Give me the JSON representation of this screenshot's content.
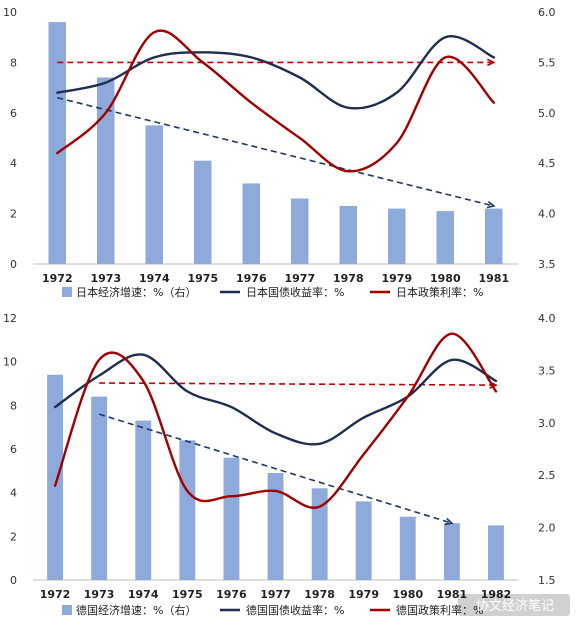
{
  "colors": {
    "bars": "#8eaadb",
    "yield": "#1f2d4f",
    "policy": "#a00000",
    "trend_dashed_red": "#c00000",
    "trend_dashed_blue": "#1f3864"
  },
  "watermark": "协文经济笔记",
  "chart_data": [
    {
      "type": "bar+line",
      "title": "",
      "categories": [
        "1972",
        "1973",
        "1974",
        "1975",
        "1976",
        "1977",
        "1978",
        "1979",
        "1980",
        "1981"
      ],
      "left_axis": {
        "ylim": [
          0,
          10
        ],
        "ticks": [
          "0",
          "2",
          "4",
          "6",
          "8",
          "10"
        ]
      },
      "right_axis": {
        "ylim": [
          3.5,
          6.0
        ],
        "ticks": [
          "3.5",
          "4.0",
          "4.5",
          "5.0",
          "5.5",
          "6.0"
        ]
      },
      "grid": false,
      "legend_position": "bottom",
      "series": [
        {
          "name": "日本经济增速：%（右）",
          "kind": "bar",
          "axis": "left",
          "values": [
            9.6,
            7.4,
            5.5,
            4.1,
            3.2,
            2.6,
            2.3,
            2.2,
            2.1,
            2.2
          ]
        },
        {
          "name": "日本国债收益率：%",
          "kind": "line",
          "axis": "right",
          "values": [
            5.2,
            5.3,
            5.55,
            5.6,
            5.55,
            5.35,
            5.05,
            5.2,
            5.75,
            5.55
          ]
        },
        {
          "name": "日本政策利率：%",
          "kind": "line",
          "axis": "right",
          "values": [
            4.6,
            5.0,
            5.8,
            5.5,
            5.1,
            4.75,
            4.42,
            4.7,
            5.55,
            5.1
          ]
        }
      ],
      "trend_lines": [
        {
          "axis": "right",
          "from": {
            "x": "1972",
            "y": 5.5
          },
          "to": {
            "x": "1981",
            "y": 5.5
          }
        },
        {
          "axis": "left",
          "from": {
            "x": "1972",
            "y": 6.6
          },
          "to": {
            "x": "1981",
            "y": 2.3
          }
        }
      ]
    },
    {
      "type": "bar+line",
      "title": "",
      "categories": [
        "1972",
        "1973",
        "1974",
        "1975",
        "1976",
        "1977",
        "1978",
        "1979",
        "1980",
        "1981",
        "1982"
      ],
      "left_axis": {
        "ylim": [
          0,
          12
        ],
        "ticks": [
          "0",
          "2",
          "4",
          "6",
          "8",
          "10",
          "12"
        ]
      },
      "right_axis": {
        "ylim": [
          1.5,
          4.0
        ],
        "ticks": [
          "1.5",
          "2.0",
          "2.5",
          "3.0",
          "3.5",
          "4.0"
        ]
      },
      "grid": false,
      "legend_position": "bottom",
      "series": [
        {
          "name": "德国经济增速：%（右）",
          "kind": "bar",
          "axis": "left",
          "values": [
            9.4,
            8.4,
            7.3,
            6.4,
            5.6,
            4.9,
            4.2,
            3.6,
            2.9,
            2.6,
            2.5
          ]
        },
        {
          "name": "德国国债收益率：%",
          "kind": "line",
          "axis": "right",
          "values": [
            3.15,
            3.45,
            3.65,
            3.3,
            3.15,
            2.9,
            2.8,
            3.05,
            3.25,
            3.6,
            3.4
          ]
        },
        {
          "name": "德国政策利率：%",
          "kind": "line",
          "axis": "right",
          "values": [
            2.4,
            3.6,
            3.4,
            2.35,
            2.3,
            2.35,
            2.2,
            2.7,
            3.25,
            3.85,
            3.3
          ]
        }
      ],
      "trend_lines": [
        {
          "axis": "right",
          "from": {
            "x": "1973",
            "y": 3.38
          },
          "to": {
            "x": "1982",
            "y": 3.36
          }
        },
        {
          "axis": "left",
          "from": {
            "x": "1973",
            "y": 7.6
          },
          "to": {
            "x": "1981",
            "y": 2.6
          }
        }
      ]
    }
  ]
}
